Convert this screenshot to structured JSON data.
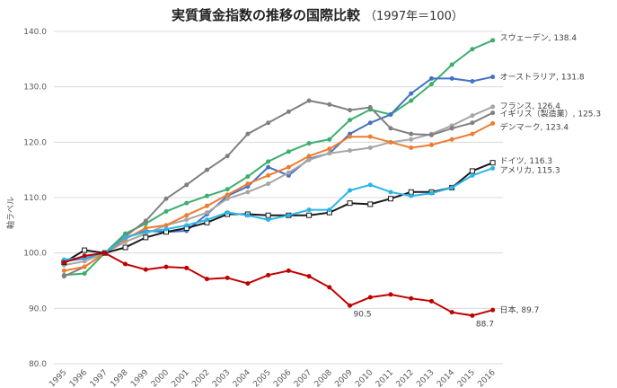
{
  "chart_data": {
    "type": "line",
    "title": "実質賃金指数の推移の国際比較",
    "subtitle": "（1997年＝100）",
    "ylabel": "軸ラベル",
    "xlabel": "",
    "ylim": [
      80,
      140
    ],
    "yticks": [
      "140.0",
      "130.0",
      "120.0",
      "110.0",
      "100.0",
      "90.0",
      "80.0"
    ],
    "categories": [
      "1995",
      "1996",
      "1997",
      "1998",
      "1999",
      "2000",
      "2001",
      "2002",
      "2003",
      "2004",
      "2005",
      "2006",
      "2007",
      "2008",
      "2009",
      "2010",
      "2011",
      "2012",
      "2013",
      "2014",
      "2015",
      "2016"
    ],
    "grid": true,
    "legend": "inline-right",
    "series": [
      {
        "name": "スウェーデン",
        "color": "#3cae6e",
        "marker": "circle",
        "label": "スウェーデン, 138.4",
        "values": [
          96.0,
          96.3,
          100.0,
          103.5,
          105.3,
          107.5,
          109.0,
          110.3,
          111.5,
          113.8,
          116.5,
          118.3,
          119.8,
          120.5,
          124.0,
          125.9,
          125.0,
          127.5,
          130.5,
          134.0,
          136.8,
          138.4
        ]
      },
      {
        "name": "オーストラリア",
        "color": "#4472c4",
        "marker": "circle",
        "label": "オーストラリア, 131.8",
        "values": [
          98.5,
          99.0,
          100.0,
          102.8,
          104.0,
          103.8,
          104.0,
          107.0,
          110.3,
          112.0,
          115.5,
          114.0,
          117.0,
          118.0,
          121.5,
          123.5,
          125.0,
          128.8,
          131.5,
          131.5,
          131.0,
          131.8
        ]
      },
      {
        "name": "フランス",
        "color": "#a6a6a6",
        "marker": "circle",
        "label": "フランス, 126.4",
        "values": [
          97.8,
          98.5,
          100.0,
          102.0,
          103.5,
          105.0,
          106.0,
          107.3,
          109.8,
          111.0,
          112.5,
          114.5,
          116.8,
          118.0,
          118.5,
          119.0,
          120.0,
          120.5,
          121.5,
          123.0,
          124.8,
          126.4
        ]
      },
      {
        "name": "イギリス（製造業）",
        "color": "#808080",
        "marker": "circle",
        "label": "イギリス（製造業）, 125.3",
        "values": [
          95.8,
          97.5,
          100.0,
          103.0,
          105.8,
          109.8,
          112.3,
          115.0,
          117.5,
          121.5,
          123.5,
          125.5,
          127.5,
          126.8,
          125.8,
          126.3,
          122.5,
          121.5,
          121.3,
          122.5,
          123.5,
          125.3
        ]
      },
      {
        "name": "デンマーク",
        "color": "#ed7d31",
        "marker": "circle",
        "label": "デンマーク, 123.4",
        "values": [
          96.8,
          97.5,
          100.0,
          102.5,
          104.5,
          105.0,
          106.8,
          108.5,
          110.5,
          112.5,
          114.0,
          115.5,
          117.5,
          118.8,
          121.0,
          121.0,
          120.0,
          119.0,
          119.5,
          120.5,
          121.5,
          123.4
        ]
      },
      {
        "name": "ドイツ",
        "color": "#1a1a1a",
        "marker": "square",
        "label": "ドイツ, 116.3",
        "values": [
          98.3,
          100.5,
          100.0,
          101.0,
          102.8,
          103.8,
          104.5,
          105.5,
          107.0,
          107.0,
          106.8,
          106.8,
          106.8,
          107.3,
          109.0,
          108.8,
          109.8,
          111.0,
          111.0,
          111.8,
          114.8,
          116.3
        ]
      },
      {
        "name": "アメリカ",
        "color": "#2ab5e8",
        "marker": "circle",
        "label": "アメリカ, 115.3",
        "values": [
          98.8,
          99.2,
          100.0,
          102.8,
          103.8,
          104.3,
          105.0,
          106.0,
          107.3,
          106.8,
          106.0,
          106.8,
          107.8,
          107.8,
          111.3,
          112.3,
          111.0,
          110.3,
          110.8,
          111.8,
          114.0,
          115.3
        ]
      },
      {
        "name": "日本",
        "color": "#c00000",
        "marker": "circle",
        "label": "日本, 89.7",
        "values": [
          98.3,
          99.5,
          100.0,
          98.0,
          97.0,
          97.5,
          97.3,
          95.3,
          95.5,
          94.5,
          96.0,
          96.8,
          95.8,
          93.8,
          90.5,
          92.0,
          92.5,
          91.8,
          91.3,
          89.3,
          88.7,
          89.7
        ]
      }
    ],
    "annotations": [
      {
        "text": "90.5",
        "category": "2009",
        "value": 90.5
      },
      {
        "text": "88.7",
        "category": "2015",
        "value": 88.7
      }
    ]
  }
}
